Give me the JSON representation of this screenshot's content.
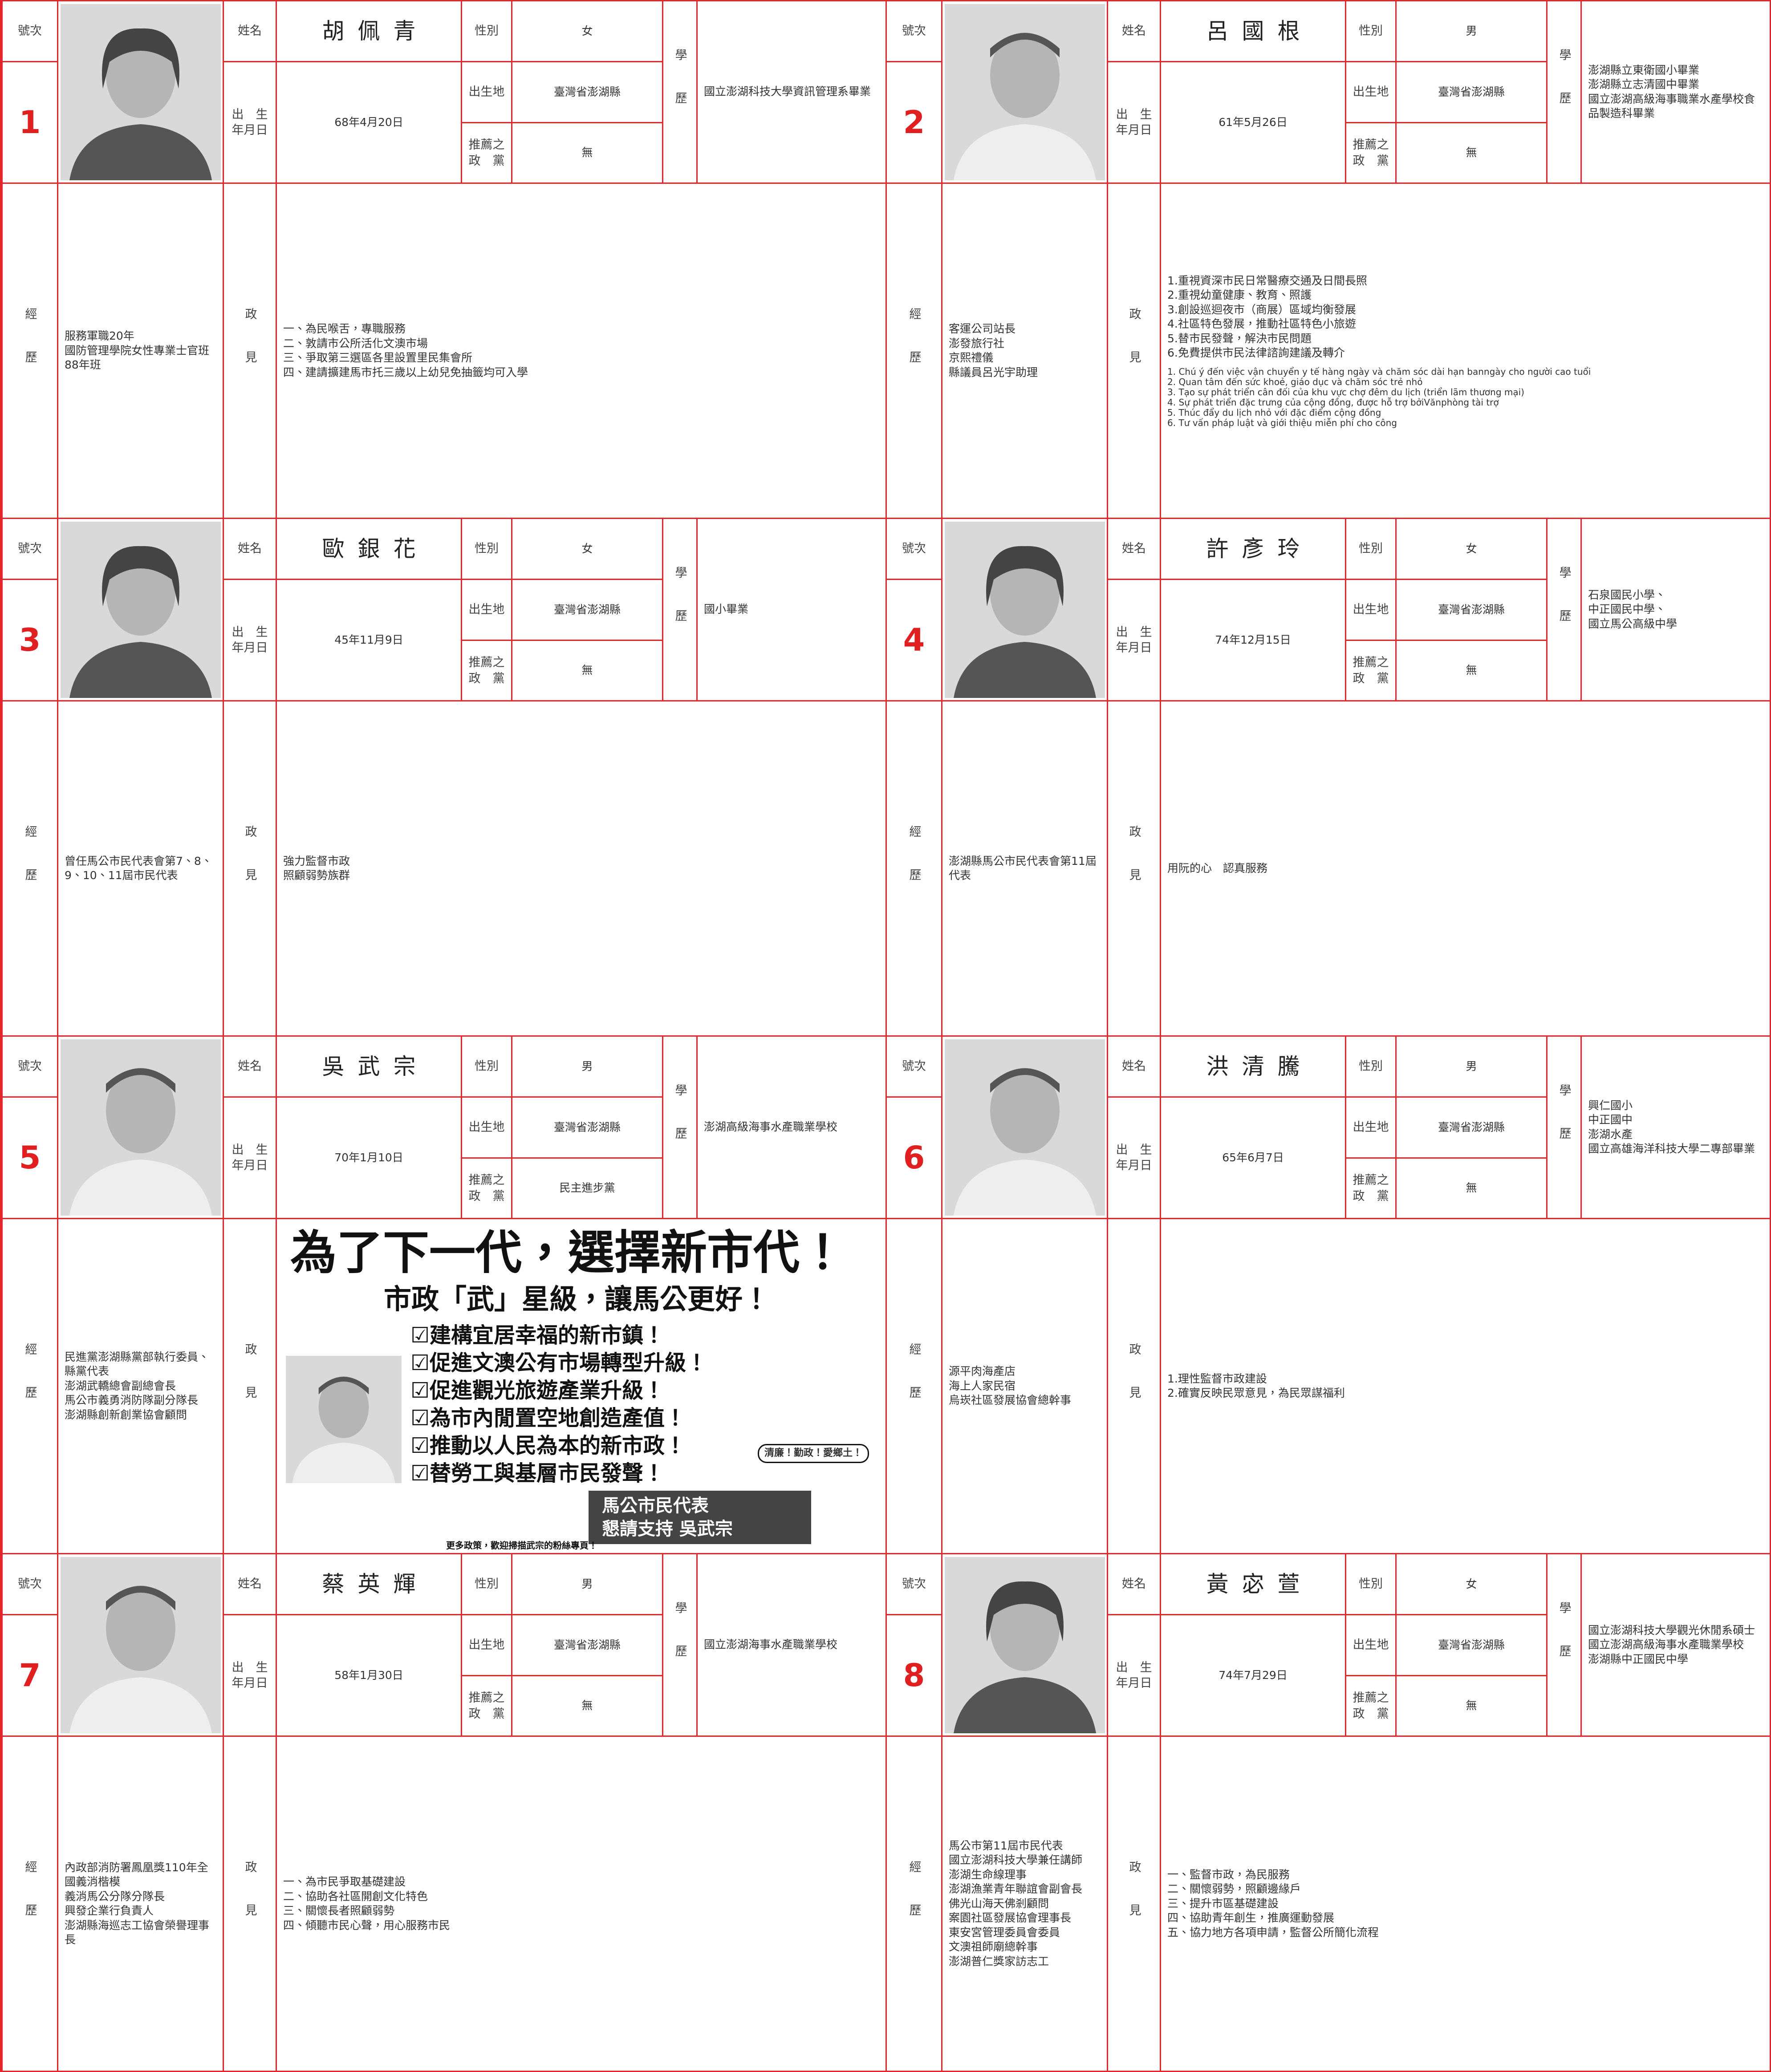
{
  "labels": {
    "number": "號次",
    "name": "姓名",
    "gender": "性別",
    "birth_date": [
      "出　生",
      "年月日"
    ],
    "birthplace": "出生地",
    "party": [
      "推薦之",
      "政　黨"
    ],
    "education": "學歷",
    "experience": "經歷",
    "platform": "政見"
  },
  "candidates": [
    {
      "number": "1",
      "name": "胡佩青",
      "gender": "女",
      "birth_date": "68年4月20日",
      "birthplace": "臺灣省澎湖縣",
      "party": "無",
      "education": [
        "國立澎湖科技大學資訊管理系畢業"
      ],
      "experience": [
        "服務軍職20年",
        "國防管理學院女性專業士官班88年班"
      ],
      "platform": [
        "一、為民喉舌，專職服務",
        "二、敦請市公所活化文澳市場",
        "三、爭取第三選區各里設置里民集會所",
        "四、建請擴建馬市托三歲以上幼兒免抽籤均可入學"
      ]
    },
    {
      "number": "2",
      "name": "呂國根",
      "gender": "男",
      "birth_date": "61年5月26日",
      "birthplace": "臺灣省澎湖縣",
      "party": "無",
      "education": [
        "澎湖縣立東衛國小畢業",
        "澎湖縣立志清國中畢業",
        "國立澎湖高級海事職業水產學校食品製造科畢業"
      ],
      "experience": [
        "客運公司站長",
        "澎發旅行社",
        "京熙禮儀",
        "縣議員呂光宇助理"
      ],
      "platform": [
        "1.重視資深市民日常醫療交通及日間長照",
        "2.重視幼童健康、教育、照護",
        "3.創設巡迴夜市（商展）區域均衡發展",
        "4.社區特色發展，推動社區特色小旅遊",
        "5.替市民發聲，解決市民問題",
        "6.免費提供市民法律諮詢建議及轉介"
      ],
      "platform_vi": [
        "1. Chú ý đến việc vận chuyển y tế hàng ngày và chăm sóc dài hạn banngày cho người cao tuổi",
        "2. Quan tâm đến sức khoẻ, giáo dục và chăm sóc trẻ nhỏ",
        "3. Tạo sự phát triển cân đối của khu vực chợ đêm du lịch (triển lãm thương mại)",
        "4. Sự phát triển đặc trưng của cộng đồng, được hỗ trợ bởiVănphòng tài trợ",
        "5. Thúc đẩy du lịch nhỏ với đặc điểm cộng đồng",
        "6. Tư vấn pháp luật và giới thiệu miễn phí cho công"
      ]
    },
    {
      "number": "3",
      "name": "歐銀花",
      "gender": "女",
      "birth_date": "45年11月9日",
      "birthplace": "臺灣省澎湖縣",
      "party": "無",
      "education": [
        "國小畢業"
      ],
      "experience": [
        "曾任馬公市民代表會第7、8、9、10、11屆市民代表"
      ],
      "platform": [
        "強力監督市政",
        "照顧弱勢族群"
      ]
    },
    {
      "number": "4",
      "name": "許彥玲",
      "gender": "女",
      "birth_date": "74年12月15日",
      "birthplace": "臺灣省澎湖縣",
      "party": "無",
      "education": [
        "石泉國民小學、",
        "中正國民中學、",
        "國立馬公高級中學"
      ],
      "experience": [
        "澎湖縣馬公市民代表會第11屆代表"
      ],
      "platform": [
        "用阮的心　認真服務"
      ]
    },
    {
      "number": "5",
      "name": "吳武宗",
      "gender": "男",
      "birth_date": "70年1月10日",
      "birthplace": "臺灣省澎湖縣",
      "party": "民主進步黨",
      "education": [
        "澎湖高級海事水產職業學校"
      ],
      "experience": [
        "民進黨澎湖縣黨部執行委員、縣黨代表",
        "澎湖武轎總會副總會長",
        "馬公市義勇消防隊副分隊長",
        "澎湖縣創新創業協會顧問"
      ],
      "platform_ad": {
        "headline": "為了下一代，選擇新市代！",
        "slogan": "市政「武」星級，讓馬公更好！",
        "items": [
          "☑建構宜居幸福的新市鎮！",
          "☑促進文澳公有市場轉型升級！",
          "☑促進觀光旅遊產業升級！",
          "☑為市內閒置空地創造產值！",
          "☑推動以人民為本的新市政！",
          "☑替勞工與基層市民發聲！"
        ],
        "badge": "清廉！勤政！愛鄉土！",
        "banner": [
          "馬公市民代表",
          "懇請支持 吳武宗"
        ],
        "footer": "更多政策，歡迎掃描武宗的粉絲專頁！"
      }
    },
    {
      "number": "6",
      "name": "洪清騰",
      "gender": "男",
      "birth_date": "65年6月7日",
      "birthplace": "臺灣省澎湖縣",
      "party": "無",
      "education": [
        "興仁國小",
        "中正國中",
        "澎湖水產",
        "國立高雄海洋科技大學二專部畢業"
      ],
      "experience": [
        "源平肉海產店",
        "海上人家民宿",
        "烏崁社區發展協會總幹事"
      ],
      "platform": [
        "1.理性監督市政建設",
        "2.確實反映民眾意見，為民眾謀福利"
      ]
    },
    {
      "number": "7",
      "name": "蔡英輝",
      "gender": "男",
      "birth_date": "58年1月30日",
      "birthplace": "臺灣省澎湖縣",
      "party": "無",
      "education": [
        "國立澎湖海事水產職業學校"
      ],
      "experience": [
        "內政部消防署鳳凰獎110年全國義消楷模",
        "義消馬公分隊分隊長",
        "興發企業行負責人",
        "澎湖縣海巡志工協會榮譽理事長"
      ],
      "platform": [
        "一、為市民爭取基礎建設",
        "二、協助各社區開創文化特色",
        "三、關懷長者照顧弱勢",
        "四、傾聽市民心聲，用心服務市民"
      ]
    },
    {
      "number": "8",
      "name": "黃宓萱",
      "gender": "女",
      "birth_date": "74年7月29日",
      "birthplace": "臺灣省澎湖縣",
      "party": "無",
      "education": [
        "國立澎湖科技大學觀光休閒系碩士",
        "國立澎湖高級海事水產職業學校",
        "澎湖縣中正國民中學"
      ],
      "experience": [
        "馬公市第11屆市民代表",
        "國立澎湖科技大學兼任講師",
        "澎湖生命線理事",
        "澎湖漁業青年聯誼會副會長",
        "佛光山海天佛剎顧問",
        "案園社區發展協會理事長",
        "東安宮管理委員會委員",
        "文澳祖師廟總幹事",
        "澎湖普仁獎家訪志工"
      ],
      "platform": [
        "一、監督市政，為民服務",
        "二、關懷弱勢，照顧邊緣戶",
        "三、提升市區基礎建設",
        "四、協助青年創生，推廣運動發展",
        "五、協力地方各項申請，監督公所簡化流程"
      ]
    }
  ]
}
